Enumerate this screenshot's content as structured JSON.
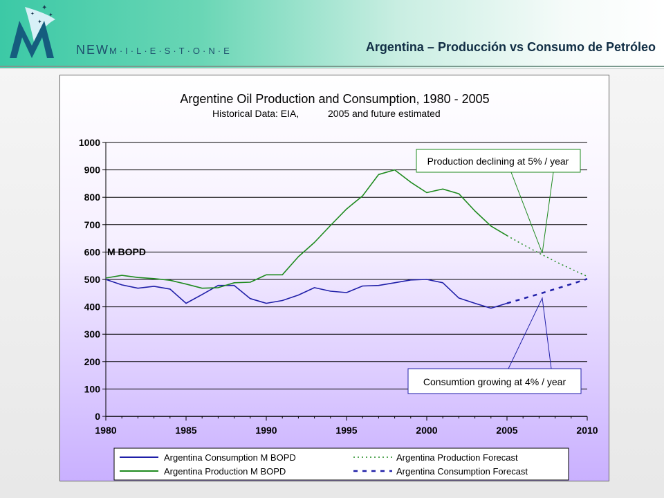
{
  "header": {
    "brand_prefix": "NEW",
    "brand_suffix": "M·I·L·E·S·T·O·N·E",
    "slide_title": "Argentina – Producción vs Consumo de Petróleo"
  },
  "colors": {
    "consumption": "#1f1fa8",
    "production": "#1e8a1e",
    "header_accent": "#3cc9a6"
  },
  "chart_data": {
    "type": "line",
    "title": "Argentine Oil Production and Consumption, 1980 - 2005",
    "subtitle_left": "Historical Data: EIA,",
    "subtitle_right": "2005 and future estimated",
    "ylabel": "M BOPD",
    "xlim": [
      1980,
      2010
    ],
    "ylim": [
      0,
      1000
    ],
    "x_ticks": [
      1980,
      1985,
      1990,
      1995,
      2000,
      2005,
      2010
    ],
    "y_ticks": [
      0,
      100,
      200,
      300,
      400,
      500,
      600,
      700,
      800,
      900,
      1000
    ],
    "grid": true,
    "legend_position": "bottom",
    "series": [
      {
        "name": "Argentina Consumption M BOPD",
        "style": "solid",
        "color": "#1f1fa8",
        "x": [
          1980,
          1981,
          1982,
          1983,
          1984,
          1985,
          1986,
          1987,
          1988,
          1989,
          1990,
          1991,
          1992,
          1993,
          1994,
          1995,
          1996,
          1997,
          1998,
          1999,
          2000,
          2001,
          2002,
          2003,
          2004,
          2005
        ],
        "y": [
          500,
          480,
          468,
          475,
          465,
          413,
          445,
          478,
          478,
          430,
          413,
          423,
          443,
          470,
          457,
          452,
          476,
          478,
          488,
          498,
          500,
          488,
          432,
          413,
          395,
          413
        ]
      },
      {
        "name": "Argentina Production M BOPD",
        "style": "solid",
        "color": "#1e8a1e",
        "x": [
          1980,
          1981,
          1982,
          1983,
          1984,
          1985,
          1986,
          1987,
          1988,
          1989,
          1990,
          1991,
          1992,
          1993,
          1994,
          1995,
          1996,
          1997,
          1998,
          1999,
          2000,
          2001,
          2002,
          2003,
          2004,
          2005
        ],
        "y": [
          505,
          515,
          507,
          503,
          497,
          483,
          468,
          470,
          488,
          490,
          517,
          517,
          583,
          635,
          697,
          757,
          805,
          883,
          900,
          855,
          817,
          830,
          813,
          750,
          695,
          660
        ]
      },
      {
        "name": "Argentina Production Forecast",
        "style": "dotted",
        "color": "#1e8a1e",
        "x": [
          2005,
          2006,
          2007,
          2008,
          2009,
          2010
        ],
        "y": [
          660,
          627,
          596,
          566,
          538,
          511
        ]
      },
      {
        "name": "Argentina Consumption Forecast",
        "style": "dashed",
        "color": "#1f1fa8",
        "x": [
          2005,
          2006,
          2007,
          2008,
          2009,
          2010
        ],
        "y": [
          413,
          430,
          447,
          465,
          483,
          502
        ]
      }
    ],
    "annotations": [
      {
        "text": "Production declining at 5% / year",
        "target": [
          2007.2,
          596
        ]
      },
      {
        "text": "Consumtion growing at 4% / year",
        "target": [
          2007.2,
          432
        ]
      }
    ]
  }
}
